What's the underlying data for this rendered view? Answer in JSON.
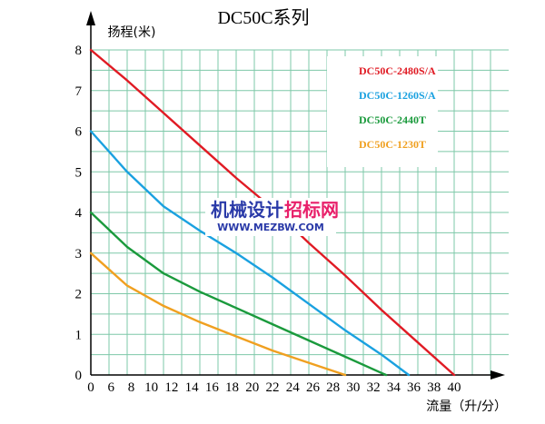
{
  "chart_data": {
    "type": "line",
    "title": "DC50C系列",
    "ylabel": "扬程(米)",
    "xlabel": "流量（升/分）",
    "x_ticks": [
      0,
      6,
      8,
      10,
      12,
      14,
      16,
      18,
      20,
      22,
      24,
      26,
      28,
      30,
      32,
      34,
      36,
      38,
      40
    ],
    "y_ticks": [
      0,
      1,
      2,
      3,
      4,
      5,
      6,
      7,
      8
    ],
    "xlim": [
      0,
      40
    ],
    "ylim": [
      0,
      8
    ],
    "grid": true,
    "legend_position": "top-right",
    "series": [
      {
        "name": "DC50C-2480S/A",
        "color": "#e01b24",
        "points": [
          [
            0,
            8
          ],
          [
            4,
            7.25
          ],
          [
            8,
            6.45
          ],
          [
            12,
            5.65
          ],
          [
            16,
            4.85
          ],
          [
            20,
            4.1
          ],
          [
            24,
            3.25
          ],
          [
            28,
            2.45
          ],
          [
            32,
            1.6
          ],
          [
            36,
            0.8
          ],
          [
            40,
            0
          ]
        ]
      },
      {
        "name": "DC50C-1260S/A",
        "color": "#1aa1e0",
        "points": [
          [
            0,
            6
          ],
          [
            4,
            5.0
          ],
          [
            8,
            4.15
          ],
          [
            12,
            3.55
          ],
          [
            16,
            3.0
          ],
          [
            20,
            2.4
          ],
          [
            24,
            1.75
          ],
          [
            28,
            1.1
          ],
          [
            32,
            0.5
          ],
          [
            35,
            0
          ]
        ]
      },
      {
        "name": "DC50C-2440T",
        "color": "#1a9a3c",
        "points": [
          [
            0,
            4
          ],
          [
            4,
            3.15
          ],
          [
            8,
            2.5
          ],
          [
            12,
            2.05
          ],
          [
            16,
            1.65
          ],
          [
            20,
            1.25
          ],
          [
            24,
            0.85
          ],
          [
            28,
            0.45
          ],
          [
            32,
            0.05
          ],
          [
            32.5,
            0
          ]
        ]
      },
      {
        "name": "DC50C-1230T",
        "color": "#f0a020",
        "points": [
          [
            0,
            3
          ],
          [
            4,
            2.2
          ],
          [
            8,
            1.7
          ],
          [
            12,
            1.3
          ],
          [
            16,
            0.95
          ],
          [
            20,
            0.6
          ],
          [
            24,
            0.3
          ],
          [
            28,
            0
          ]
        ]
      }
    ]
  },
  "watermark": {
    "cn_parts": [
      "机械设计",
      "招标网"
    ],
    "url": "WWW.MEZBW.COM",
    "colors": [
      "#2a3aa8",
      "#e8206a"
    ]
  }
}
